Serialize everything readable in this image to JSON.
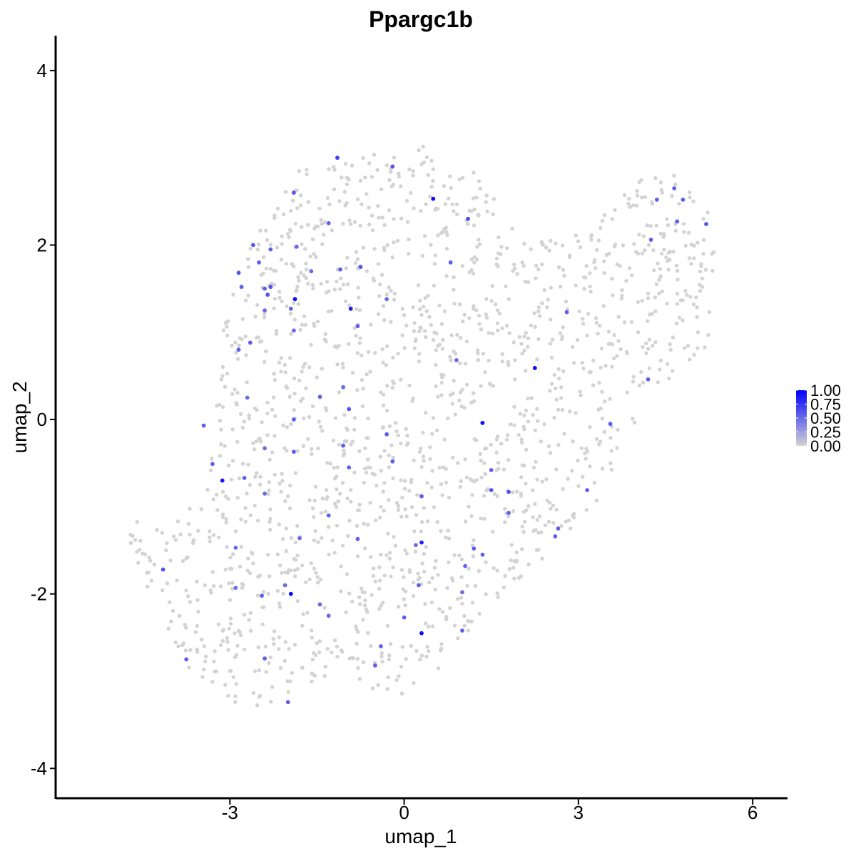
{
  "chart_data": {
    "type": "scatter",
    "title": "Ppargc1b",
    "xlabel": "umap_1",
    "ylabel": "umap_2",
    "xlim": [
      -6.0,
      6.6
    ],
    "ylim": [
      -4.35,
      4.4
    ],
    "xticks": [
      -3,
      0,
      3,
      6
    ],
    "yticks": [
      -4,
      -2,
      0,
      2,
      4
    ],
    "grid": false,
    "legend_position": "right",
    "color_scale": {
      "low": "#d3d3d3",
      "high": "#0000ff",
      "ticks": [
        "1.00",
        "0.75",
        "0.50",
        "0.25",
        "0.00"
      ],
      "tick_values": [
        1.0,
        0.75,
        0.5,
        0.25,
        0.0
      ],
      "range": [
        0,
        1
      ]
    },
    "background_cells": {
      "count": 1650,
      "color": "#d3d3d3",
      "value": 0,
      "outline": [
        [
          -4.8,
          -1.35
        ],
        [
          -4.75,
          -1.1
        ],
        [
          -4.1,
          -1.3
        ],
        [
          -3.6,
          -0.6
        ],
        [
          -3.4,
          -0.1
        ],
        [
          -3.25,
          0.3
        ],
        [
          -3.15,
          0.9
        ],
        [
          -2.95,
          1.55
        ],
        [
          -2.6,
          2.05
        ],
        [
          -2.1,
          2.55
        ],
        [
          -1.8,
          2.9
        ],
        [
          -1.0,
          3.05
        ],
        [
          -0.2,
          3.1
        ],
        [
          0.3,
          3.15
        ],
        [
          0.8,
          2.85
        ],
        [
          1.2,
          2.85
        ],
        [
          1.7,
          2.4
        ],
        [
          2.0,
          2.05
        ],
        [
          2.8,
          2.1
        ],
        [
          3.3,
          2.45
        ],
        [
          3.6,
          2.5
        ],
        [
          4.0,
          2.7
        ],
        [
          4.35,
          2.95
        ],
        [
          4.6,
          2.85
        ],
        [
          5.0,
          2.6
        ],
        [
          5.35,
          2.45
        ],
        [
          5.35,
          1.65
        ],
        [
          5.25,
          0.8
        ],
        [
          4.9,
          0.65
        ],
        [
          4.25,
          0.2
        ],
        [
          3.8,
          -0.2
        ],
        [
          3.6,
          -0.6
        ],
        [
          3.3,
          -0.95
        ],
        [
          2.9,
          -1.25
        ],
        [
          2.5,
          -1.55
        ],
        [
          2.1,
          -1.75
        ],
        [
          1.75,
          -1.95
        ],
        [
          1.4,
          -2.2
        ],
        [
          1.0,
          -2.55
        ],
        [
          0.6,
          -2.9
        ],
        [
          0.0,
          -3.15
        ],
        [
          -0.6,
          -3.1
        ],
        [
          -1.2,
          -3.0
        ],
        [
          -1.8,
          -3.1
        ],
        [
          -2.3,
          -3.45
        ],
        [
          -2.6,
          -3.4
        ],
        [
          -3.0,
          -3.2
        ],
        [
          -3.6,
          -2.95
        ],
        [
          -4.0,
          -2.55
        ],
        [
          -4.3,
          -2.1
        ],
        [
          -4.5,
          -1.8
        ]
      ]
    },
    "points": [
      {
        "x": 0.5,
        "y": 2.53,
        "value": 0.95
      },
      {
        "x": -1.88,
        "y": 1.38,
        "value": 0.93
      },
      {
        "x": -0.92,
        "y": 1.27,
        "value": 0.88
      },
      {
        "x": 2.25,
        "y": 0.59,
        "value": 0.96
      },
      {
        "x": 1.35,
        "y": -0.04,
        "value": 0.92
      },
      {
        "x": -3.13,
        "y": -0.7,
        "value": 0.9
      },
      {
        "x": 0.3,
        "y": -1.41,
        "value": 0.85
      },
      {
        "x": -1.95,
        "y": -2.0,
        "value": 0.95
      },
      {
        "x": 0.3,
        "y": -2.45,
        "value": 0.92
      },
      {
        "x": -1.15,
        "y": 3.0,
        "value": 0.7
      },
      {
        "x": -0.2,
        "y": 2.9,
        "value": 0.6
      },
      {
        "x": 1.1,
        "y": 2.3,
        "value": 0.65
      },
      {
        "x": -1.9,
        "y": 2.6,
        "value": 0.6
      },
      {
        "x": -1.3,
        "y": 2.25,
        "value": 0.55
      },
      {
        "x": -2.6,
        "y": 2.0,
        "value": 0.6
      },
      {
        "x": -2.3,
        "y": 1.95,
        "value": 0.55
      },
      {
        "x": -1.85,
        "y": 1.98,
        "value": 0.5
      },
      {
        "x": -2.5,
        "y": 1.8,
        "value": 0.55
      },
      {
        "x": -1.6,
        "y": 1.7,
        "value": 0.5
      },
      {
        "x": -1.1,
        "y": 1.72,
        "value": 0.55
      },
      {
        "x": -0.75,
        "y": 1.75,
        "value": 0.6
      },
      {
        "x": 0.8,
        "y": 1.8,
        "value": 0.55
      },
      {
        "x": -2.85,
        "y": 1.68,
        "value": 0.6
      },
      {
        "x": -2.8,
        "y": 1.52,
        "value": 0.55
      },
      {
        "x": -2.3,
        "y": 1.52,
        "value": 0.6
      },
      {
        "x": -2.4,
        "y": 1.5,
        "value": 0.55
      },
      {
        "x": -2.35,
        "y": 1.43,
        "value": 0.6
      },
      {
        "x": -0.3,
        "y": 1.38,
        "value": 0.5
      },
      {
        "x": -1.95,
        "y": 1.27,
        "value": 0.55
      },
      {
        "x": -2.4,
        "y": 1.25,
        "value": 0.5
      },
      {
        "x": -0.8,
        "y": 1.07,
        "value": 0.55
      },
      {
        "x": -1.9,
        "y": 1.02,
        "value": 0.5
      },
      {
        "x": 2.8,
        "y": 1.23,
        "value": 0.55
      },
      {
        "x": -2.65,
        "y": 0.88,
        "value": 0.55
      },
      {
        "x": -2.85,
        "y": 0.8,
        "value": 0.55
      },
      {
        "x": 0.9,
        "y": 0.68,
        "value": 0.5
      },
      {
        "x": -1.05,
        "y": 0.37,
        "value": 0.5
      },
      {
        "x": 4.2,
        "y": 0.46,
        "value": 0.55
      },
      {
        "x": -2.7,
        "y": 0.25,
        "value": 0.5
      },
      {
        "x": -1.45,
        "y": 0.26,
        "value": 0.55
      },
      {
        "x": -0.95,
        "y": 0.12,
        "value": 0.6
      },
      {
        "x": -1.9,
        "y": 0.0,
        "value": 0.55
      },
      {
        "x": -3.45,
        "y": -0.07,
        "value": 0.55
      },
      {
        "x": 3.55,
        "y": -0.05,
        "value": 0.55
      },
      {
        "x": -0.3,
        "y": -0.17,
        "value": 0.55
      },
      {
        "x": -1.05,
        "y": -0.3,
        "value": 0.55
      },
      {
        "x": -2.4,
        "y": -0.33,
        "value": 0.5
      },
      {
        "x": -1.9,
        "y": -0.37,
        "value": 0.55
      },
      {
        "x": -0.2,
        "y": -0.48,
        "value": 0.55
      },
      {
        "x": -3.3,
        "y": -0.51,
        "value": 0.55
      },
      {
        "x": -0.95,
        "y": -0.55,
        "value": 0.55
      },
      {
        "x": 1.5,
        "y": -0.58,
        "value": 0.55
      },
      {
        "x": -2.75,
        "y": -0.67,
        "value": 0.55
      },
      {
        "x": 1.5,
        "y": -0.81,
        "value": 0.6
      },
      {
        "x": 1.8,
        "y": -0.83,
        "value": 0.6
      },
      {
        "x": -2.4,
        "y": -0.85,
        "value": 0.5
      },
      {
        "x": 3.15,
        "y": -0.81,
        "value": 0.55
      },
      {
        "x": 0.3,
        "y": -0.88,
        "value": 0.55
      },
      {
        "x": -1.3,
        "y": -1.1,
        "value": 0.55
      },
      {
        "x": 1.8,
        "y": -1.07,
        "value": 0.55
      },
      {
        "x": 2.65,
        "y": -1.25,
        "value": 0.55
      },
      {
        "x": 2.6,
        "y": -1.34,
        "value": 0.55
      },
      {
        "x": -1.8,
        "y": -1.36,
        "value": 0.5
      },
      {
        "x": -0.8,
        "y": -1.37,
        "value": 0.55
      },
      {
        "x": 0.2,
        "y": -1.44,
        "value": 0.5
      },
      {
        "x": 1.2,
        "y": -1.48,
        "value": 0.55
      },
      {
        "x": 1.35,
        "y": -1.55,
        "value": 0.55
      },
      {
        "x": -2.9,
        "y": -1.47,
        "value": 0.5
      },
      {
        "x": 1.05,
        "y": -1.68,
        "value": 0.55
      },
      {
        "x": -4.15,
        "y": -1.72,
        "value": 0.6
      },
      {
        "x": 0.25,
        "y": -1.9,
        "value": 0.55
      },
      {
        "x": -2.05,
        "y": -1.9,
        "value": 0.5
      },
      {
        "x": -2.9,
        "y": -1.93,
        "value": 0.5
      },
      {
        "x": 1.0,
        "y": -1.98,
        "value": 0.5
      },
      {
        "x": -2.45,
        "y": -2.02,
        "value": 0.55
      },
      {
        "x": -1.45,
        "y": -2.12,
        "value": 0.5
      },
      {
        "x": -1.3,
        "y": -2.25,
        "value": 0.5
      },
      {
        "x": 0.0,
        "y": -2.27,
        "value": 0.55
      },
      {
        "x": 1.0,
        "y": -2.42,
        "value": 0.55
      },
      {
        "x": -0.4,
        "y": -2.6,
        "value": 0.55
      },
      {
        "x": -2.4,
        "y": -2.74,
        "value": 0.55
      },
      {
        "x": -3.75,
        "y": -2.75,
        "value": 0.55
      },
      {
        "x": -0.5,
        "y": -2.82,
        "value": 0.55
      },
      {
        "x": -2.0,
        "y": -3.24,
        "value": 0.55
      },
      {
        "x": 4.35,
        "y": 2.52,
        "value": 0.55
      },
      {
        "x": 4.65,
        "y": 2.65,
        "value": 0.55
      },
      {
        "x": 4.8,
        "y": 2.52,
        "value": 0.55
      },
      {
        "x": 4.7,
        "y": 2.27,
        "value": 0.55
      },
      {
        "x": 5.2,
        "y": 2.24,
        "value": 0.6
      },
      {
        "x": 4.25,
        "y": 2.06,
        "value": 0.55
      }
    ]
  }
}
